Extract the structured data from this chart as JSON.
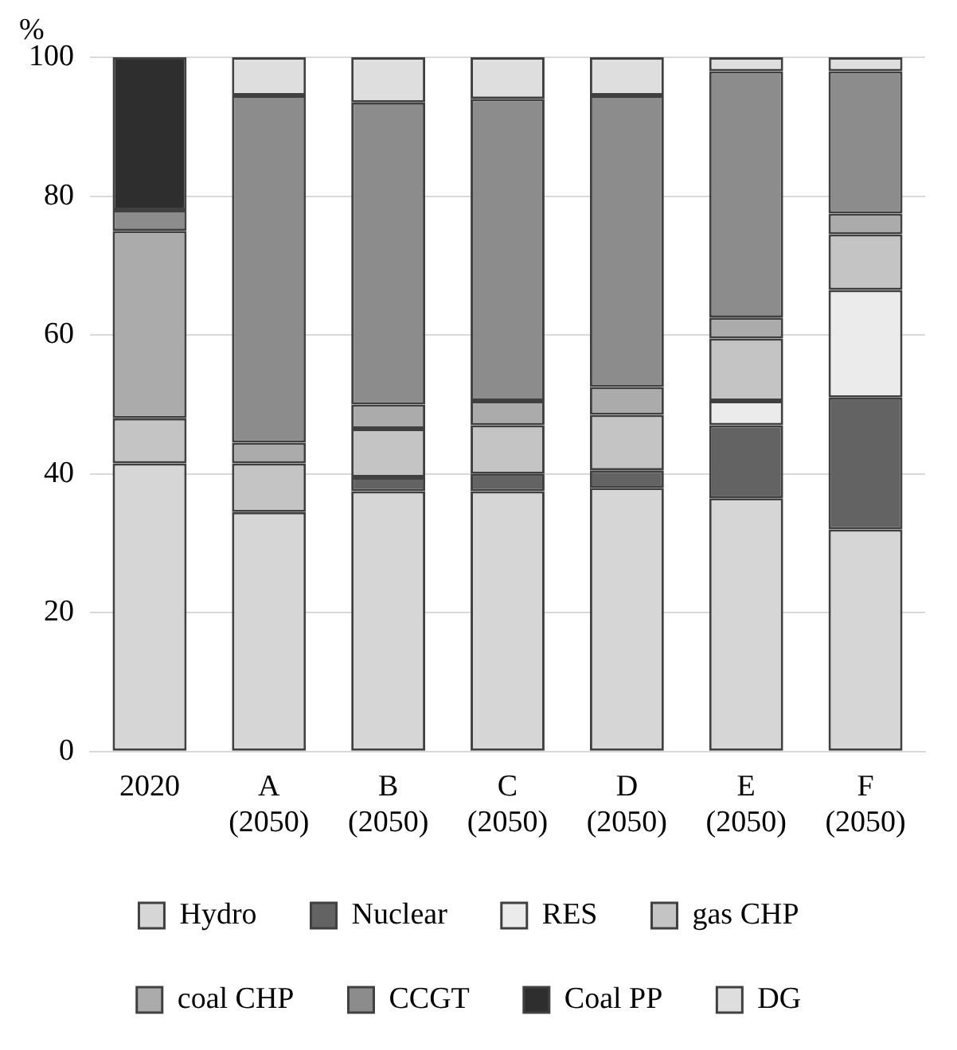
{
  "chart_data": {
    "type": "bar",
    "stacked": true,
    "ylabel": "%",
    "categories": [
      "2020",
      "A (2050)",
      "B (2050)",
      "C (2050)",
      "D (2050)",
      "E (2050)",
      "F (2050)"
    ],
    "series": [
      {
        "name": "Hydro",
        "color": "#d6d6d6",
        "values": [
          41.5,
          34.5,
          37.5,
          37.5,
          38,
          36.5,
          32
        ]
      },
      {
        "name": "Nuclear",
        "color": "#636363",
        "values": [
          0,
          0,
          2,
          2.5,
          2.5,
          10.5,
          19
        ]
      },
      {
        "name": "RES",
        "color": "#ebebeb",
        "values": [
          0,
          0,
          0,
          0,
          0,
          3.5,
          15.5
        ]
      },
      {
        "name": "gas CHP",
        "color": "#c4c4c4",
        "values": [
          6.5,
          7,
          7,
          7,
          8,
          9,
          8
        ]
      },
      {
        "name": "coal CHP",
        "color": "#ababab",
        "values": [
          27,
          3,
          3.5,
          3.5,
          4,
          3,
          3
        ]
      },
      {
        "name": "CCGT",
        "color": "#8c8c8c",
        "values": [
          3,
          50,
          43.5,
          43.5,
          42,
          35.5,
          20.5
        ]
      },
      {
        "name": "Coal PP",
        "color": "#2e2e2e",
        "values": [
          22,
          0,
          0,
          0,
          0,
          0,
          0
        ]
      },
      {
        "name": "DG",
        "color": "#dedede",
        "values": [
          0,
          5.5,
          6.5,
          6,
          5.5,
          2,
          2
        ]
      }
    ],
    "ylim": [
      0,
      100
    ],
    "yticks": [
      0,
      20,
      40,
      60,
      80,
      100
    ],
    "grid": "y",
    "legend": "bottom"
  }
}
